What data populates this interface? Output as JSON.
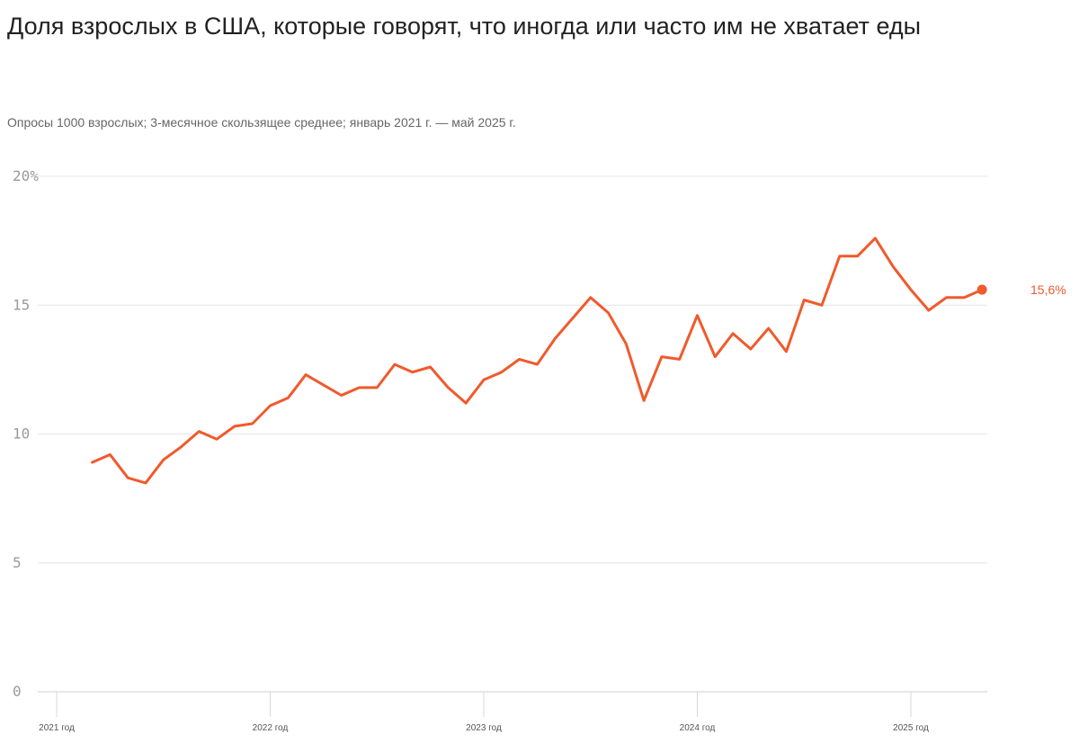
{
  "chart_data": {
    "type": "line",
    "title": "Доля взрослых в США, которые говорят, что иногда или часто им не хватает еды",
    "subtitle": "Опросы 1000 взрослых; 3-месячное скользящее среднее; январь 2021 г. — май 2025 г.",
    "xlabel": "",
    "ylabel": "",
    "ylim": [
      0,
      20
    ],
    "y_ticks": [
      "0",
      "5",
      "10",
      "15",
      "20%"
    ],
    "x_ticks": [
      "2021 год",
      "2022 год",
      "2023 год",
      "2024 год",
      "2025 год"
    ],
    "grid": true,
    "line_color": "#f05a2c",
    "end_label": "15,6%",
    "series": [
      {
        "x": [
          "2021-03",
          "2021-04",
          "2021-05",
          "2021-06",
          "2021-07",
          "2021-08",
          "2021-09",
          "2021-10",
          "2021-11",
          "2021-12",
          "2022-01",
          "2022-02",
          "2022-03",
          "2022-04",
          "2022-05",
          "2022-06",
          "2022-07",
          "2022-08",
          "2022-09",
          "2022-10",
          "2022-11",
          "2022-12",
          "2023-01",
          "2023-02",
          "2023-03",
          "2023-04",
          "2023-05",
          "2023-06",
          "2023-07",
          "2023-08",
          "2023-09",
          "2023-10",
          "2023-11",
          "2023-12",
          "2024-01",
          "2024-02",
          "2024-03",
          "2024-04",
          "2024-05",
          "2024-06",
          "2024-07",
          "2024-08",
          "2024-09",
          "2024-10",
          "2024-11",
          "2024-12",
          "2025-01",
          "2025-02",
          "2025-03",
          "2025-04",
          "2025-05"
        ],
        "values": [
          8.9,
          9.2,
          8.3,
          8.1,
          9.0,
          9.5,
          10.1,
          9.8,
          10.3,
          10.4,
          11.1,
          11.4,
          12.3,
          11.9,
          11.5,
          11.8,
          11.8,
          12.7,
          12.4,
          12.6,
          11.8,
          11.2,
          12.1,
          12.4,
          12.9,
          12.7,
          13.7,
          14.5,
          15.3,
          14.7,
          13.5,
          11.3,
          13.0,
          12.9,
          14.6,
          13.0,
          13.9,
          13.3,
          14.1,
          13.2,
          15.2,
          15.0,
          16.9,
          16.9,
          17.6,
          16.5,
          15.6,
          14.8,
          15.3,
          15.3,
          15.6
        ]
      }
    ]
  }
}
